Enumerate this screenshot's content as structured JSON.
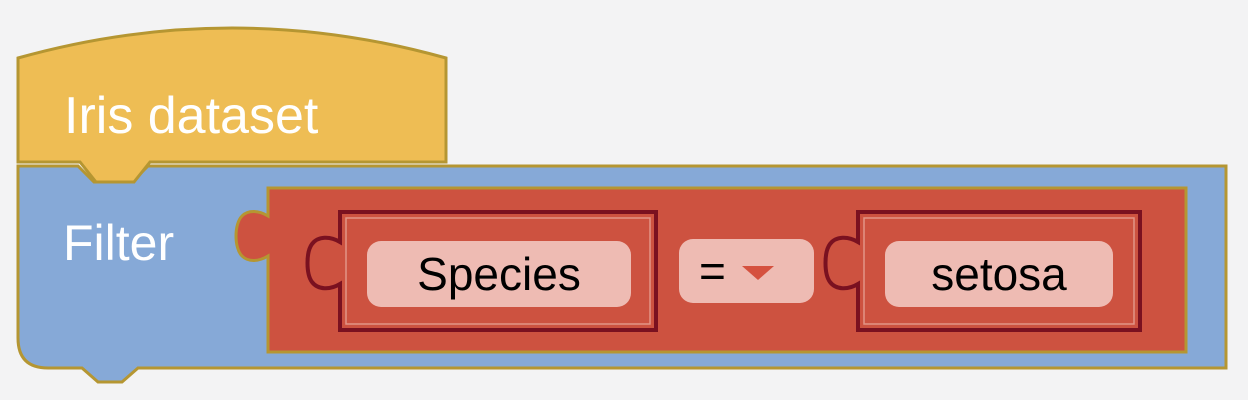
{
  "hat_block": {
    "label": "Iris dataset",
    "color": "#eebd54"
  },
  "filter_block": {
    "label": "Filter",
    "color": "#86a9d7"
  },
  "condition_block": {
    "color": "#cd5240",
    "field": "Species",
    "operator": "=",
    "value": "setosa"
  },
  "colors": {
    "outline": "#b59632",
    "inner_outline": "#7a1120",
    "field_bg": "#eebbb3",
    "background": "#f3f3f4"
  }
}
